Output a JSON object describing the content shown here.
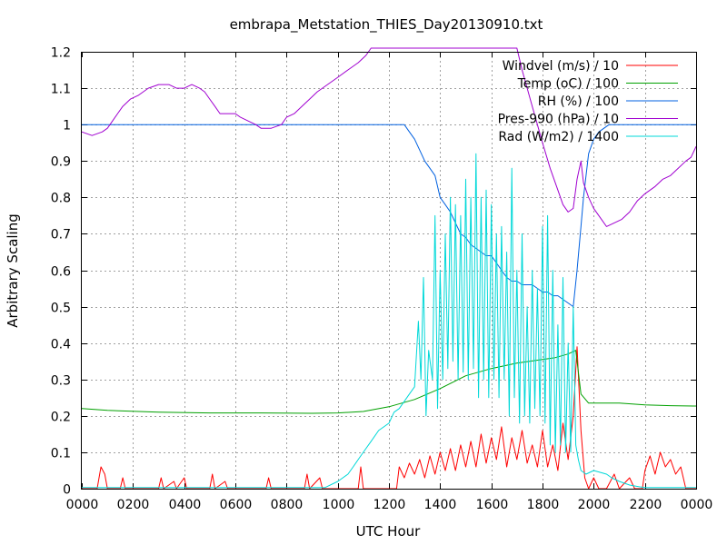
{
  "chart_data": {
    "type": "line",
    "title": "embrapa_Metstation_THIES_Day20130910.txt",
    "xlabel": "UTC Hour",
    "ylabel": "Arbitrary Scaling",
    "xlim": [
      0,
      2400
    ],
    "ylim": [
      0,
      1.2
    ],
    "grid": true,
    "legend_position": "top-right",
    "x_ticks": [
      "0000",
      "0200",
      "0400",
      "0600",
      "0800",
      "1000",
      "1200",
      "1400",
      "1600",
      "1800",
      "2000",
      "2200",
      "0000"
    ],
    "y_ticks": [
      "0",
      "0.1",
      "0.2",
      "0.3",
      "0.4",
      "0.5",
      "0.6",
      "0.7",
      "0.8",
      "0.9",
      "1",
      "1.1",
      "1.2"
    ],
    "series": [
      {
        "name": "Windvel (m/s) / 10",
        "color": "#ff0000",
        "points": [
          [
            0,
            0
          ],
          [
            60,
            0
          ],
          [
            75,
            0.06
          ],
          [
            90,
            0.04
          ],
          [
            100,
            0
          ],
          [
            150,
            0
          ],
          [
            160,
            0.03
          ],
          [
            170,
            0
          ],
          [
            300,
            0
          ],
          [
            310,
            0.03
          ],
          [
            320,
            0
          ],
          [
            360,
            0.02
          ],
          [
            370,
            0
          ],
          [
            400,
            0.03
          ],
          [
            410,
            0
          ],
          [
            500,
            0
          ],
          [
            510,
            0.04
          ],
          [
            520,
            0
          ],
          [
            560,
            0.02
          ],
          [
            570,
            0
          ],
          [
            720,
            0
          ],
          [
            730,
            0.03
          ],
          [
            740,
            0
          ],
          [
            870,
            0
          ],
          [
            880,
            0.04
          ],
          [
            890,
            0
          ],
          [
            930,
            0.03
          ],
          [
            940,
            0
          ],
          [
            1080,
            0
          ],
          [
            1090,
            0.06
          ],
          [
            1100,
            0
          ],
          [
            1230,
            0
          ],
          [
            1240,
            0.06
          ],
          [
            1260,
            0.03
          ],
          [
            1280,
            0.07
          ],
          [
            1300,
            0.04
          ],
          [
            1320,
            0.08
          ],
          [
            1340,
            0.03
          ],
          [
            1360,
            0.09
          ],
          [
            1380,
            0.04
          ],
          [
            1400,
            0.1
          ],
          [
            1420,
            0.05
          ],
          [
            1440,
            0.11
          ],
          [
            1460,
            0.05
          ],
          [
            1480,
            0.12
          ],
          [
            1500,
            0.06
          ],
          [
            1520,
            0.13
          ],
          [
            1540,
            0.06
          ],
          [
            1560,
            0.15
          ],
          [
            1580,
            0.07
          ],
          [
            1600,
            0.14
          ],
          [
            1620,
            0.08
          ],
          [
            1640,
            0.17
          ],
          [
            1660,
            0.06
          ],
          [
            1680,
            0.14
          ],
          [
            1700,
            0.08
          ],
          [
            1720,
            0.16
          ],
          [
            1740,
            0.07
          ],
          [
            1760,
            0.12
          ],
          [
            1780,
            0.06
          ],
          [
            1800,
            0.16
          ],
          [
            1820,
            0.06
          ],
          [
            1840,
            0.12
          ],
          [
            1860,
            0.05
          ],
          [
            1880,
            0.18
          ],
          [
            1900,
            0.08
          ],
          [
            1920,
            0.2
          ],
          [
            1935,
            0.39
          ],
          [
            1950,
            0.16
          ],
          [
            1965,
            0.03
          ],
          [
            1980,
            0
          ],
          [
            2000,
            0.03
          ],
          [
            2020,
            0
          ],
          [
            2050,
            0
          ],
          [
            2080,
            0.04
          ],
          [
            2100,
            0
          ],
          [
            2140,
            0.03
          ],
          [
            2160,
            0
          ],
          [
            2190,
            0
          ],
          [
            2200,
            0.05
          ],
          [
            2220,
            0.09
          ],
          [
            2240,
            0.04
          ],
          [
            2260,
            0.1
          ],
          [
            2280,
            0.06
          ],
          [
            2300,
            0.08
          ],
          [
            2320,
            0.04
          ],
          [
            2340,
            0.06
          ],
          [
            2360,
            0
          ],
          [
            2400,
            0
          ]
        ]
      },
      {
        "name": "Temp (oC) / 100",
        "color": "#00a000",
        "points": [
          [
            0,
            0.22
          ],
          [
            100,
            0.215
          ],
          [
            300,
            0.21
          ],
          [
            500,
            0.208
          ],
          [
            700,
            0.208
          ],
          [
            900,
            0.207
          ],
          [
            1000,
            0.208
          ],
          [
            1100,
            0.212
          ],
          [
            1200,
            0.225
          ],
          [
            1300,
            0.245
          ],
          [
            1400,
            0.275
          ],
          [
            1500,
            0.31
          ],
          [
            1600,
            0.33
          ],
          [
            1700,
            0.345
          ],
          [
            1800,
            0.355
          ],
          [
            1850,
            0.36
          ],
          [
            1900,
            0.37
          ],
          [
            1930,
            0.38
          ],
          [
            1950,
            0.26
          ],
          [
            1980,
            0.235
          ],
          [
            2000,
            0.235
          ],
          [
            2100,
            0.235
          ],
          [
            2200,
            0.23
          ],
          [
            2300,
            0.228
          ],
          [
            2400,
            0.227
          ]
        ]
      },
      {
        "name": "RH (%) / 100",
        "color": "#0060e0",
        "points": [
          [
            0,
            1.0
          ],
          [
            1260,
            1.0
          ],
          [
            1280,
            0.98
          ],
          [
            1300,
            0.96
          ],
          [
            1320,
            0.93
          ],
          [
            1340,
            0.9
          ],
          [
            1360,
            0.88
          ],
          [
            1380,
            0.86
          ],
          [
            1400,
            0.8
          ],
          [
            1420,
            0.78
          ],
          [
            1440,
            0.76
          ],
          [
            1460,
            0.73
          ],
          [
            1480,
            0.7
          ],
          [
            1500,
            0.69
          ],
          [
            1520,
            0.67
          ],
          [
            1540,
            0.66
          ],
          [
            1560,
            0.65
          ],
          [
            1580,
            0.64
          ],
          [
            1600,
            0.64
          ],
          [
            1620,
            0.62
          ],
          [
            1640,
            0.6
          ],
          [
            1660,
            0.58
          ],
          [
            1680,
            0.57
          ],
          [
            1700,
            0.57
          ],
          [
            1720,
            0.56
          ],
          [
            1740,
            0.56
          ],
          [
            1760,
            0.56
          ],
          [
            1780,
            0.55
          ],
          [
            1800,
            0.54
          ],
          [
            1820,
            0.54
          ],
          [
            1840,
            0.53
          ],
          [
            1860,
            0.53
          ],
          [
            1880,
            0.52
          ],
          [
            1900,
            0.51
          ],
          [
            1920,
            0.5
          ],
          [
            1935,
            0.6
          ],
          [
            1950,
            0.72
          ],
          [
            1960,
            0.8
          ],
          [
            1980,
            0.92
          ],
          [
            2000,
            0.96
          ],
          [
            2020,
            0.98
          ],
          [
            2040,
            0.99
          ],
          [
            2060,
            1.0
          ],
          [
            2400,
            1.0
          ]
        ]
      },
      {
        "name": "Pres-990 (hPa) / 10",
        "color": "#a000d0",
        "points": [
          [
            0,
            0.98
          ],
          [
            40,
            0.97
          ],
          [
            80,
            0.98
          ],
          [
            100,
            0.99
          ],
          [
            120,
            1.01
          ],
          [
            140,
            1.03
          ],
          [
            160,
            1.05
          ],
          [
            190,
            1.07
          ],
          [
            220,
            1.08
          ],
          [
            240,
            1.09
          ],
          [
            260,
            1.1
          ],
          [
            300,
            1.11
          ],
          [
            340,
            1.11
          ],
          [
            370,
            1.1
          ],
          [
            400,
            1.1
          ],
          [
            430,
            1.11
          ],
          [
            460,
            1.1
          ],
          [
            480,
            1.09
          ],
          [
            500,
            1.07
          ],
          [
            520,
            1.05
          ],
          [
            540,
            1.03
          ],
          [
            560,
            1.03
          ],
          [
            600,
            1.03
          ],
          [
            620,
            1.02
          ],
          [
            650,
            1.01
          ],
          [
            680,
            1.0
          ],
          [
            700,
            0.99
          ],
          [
            740,
            0.99
          ],
          [
            780,
            1.0
          ],
          [
            800,
            1.02
          ],
          [
            830,
            1.03
          ],
          [
            860,
            1.05
          ],
          [
            890,
            1.07
          ],
          [
            920,
            1.09
          ],
          [
            960,
            1.11
          ],
          [
            1000,
            1.13
          ],
          [
            1040,
            1.15
          ],
          [
            1080,
            1.17
          ],
          [
            1110,
            1.19
          ],
          [
            1130,
            1.21
          ],
          [
            1700,
            1.21
          ],
          [
            1720,
            1.15
          ],
          [
            1760,
            1.05
          ],
          [
            1800,
            0.95
          ],
          [
            1830,
            0.88
          ],
          [
            1860,
            0.82
          ],
          [
            1880,
            0.78
          ],
          [
            1900,
            0.76
          ],
          [
            1920,
            0.77
          ],
          [
            1935,
            0.85
          ],
          [
            1950,
            0.9
          ],
          [
            1960,
            0.84
          ],
          [
            1980,
            0.8
          ],
          [
            2000,
            0.77
          ],
          [
            2030,
            0.74
          ],
          [
            2050,
            0.72
          ],
          [
            2080,
            0.73
          ],
          [
            2110,
            0.74
          ],
          [
            2140,
            0.76
          ],
          [
            2170,
            0.79
          ],
          [
            2200,
            0.81
          ],
          [
            2240,
            0.83
          ],
          [
            2270,
            0.85
          ],
          [
            2300,
            0.86
          ],
          [
            2330,
            0.88
          ],
          [
            2360,
            0.9
          ],
          [
            2380,
            0.91
          ],
          [
            2400,
            0.94
          ]
        ]
      },
      {
        "name": "Rad (W/m2) / 1400",
        "color": "#00d8d8",
        "points": [
          [
            0,
            0.003
          ],
          [
            950,
            0.003
          ],
          [
            1000,
            0.02
          ],
          [
            1040,
            0.04
          ],
          [
            1060,
            0.06
          ],
          [
            1080,
            0.08
          ],
          [
            1100,
            0.1
          ],
          [
            1130,
            0.13
          ],
          [
            1160,
            0.16
          ],
          [
            1180,
            0.17
          ],
          [
            1200,
            0.18
          ],
          [
            1220,
            0.21
          ],
          [
            1240,
            0.22
          ],
          [
            1260,
            0.24
          ],
          [
            1280,
            0.26
          ],
          [
            1300,
            0.28
          ],
          [
            1315,
            0.46
          ],
          [
            1325,
            0.3
          ],
          [
            1335,
            0.58
          ],
          [
            1345,
            0.2
          ],
          [
            1355,
            0.38
          ],
          [
            1370,
            0.3
          ],
          [
            1380,
            0.75
          ],
          [
            1390,
            0.22
          ],
          [
            1400,
            0.6
          ],
          [
            1410,
            0.3
          ],
          [
            1420,
            0.7
          ],
          [
            1430,
            0.33
          ],
          [
            1440,
            0.8
          ],
          [
            1450,
            0.35
          ],
          [
            1460,
            0.78
          ],
          [
            1470,
            0.3
          ],
          [
            1480,
            0.75
          ],
          [
            1490,
            0.32
          ],
          [
            1500,
            0.85
          ],
          [
            1510,
            0.3
          ],
          [
            1520,
            0.8
          ],
          [
            1530,
            0.33
          ],
          [
            1540,
            0.92
          ],
          [
            1550,
            0.25
          ],
          [
            1560,
            0.8
          ],
          [
            1570,
            0.3
          ],
          [
            1580,
            0.82
          ],
          [
            1590,
            0.25
          ],
          [
            1600,
            0.78
          ],
          [
            1610,
            0.3
          ],
          [
            1620,
            0.7
          ],
          [
            1630,
            0.25
          ],
          [
            1640,
            0.72
          ],
          [
            1650,
            0.3
          ],
          [
            1660,
            0.65
          ],
          [
            1670,
            0.2
          ],
          [
            1680,
            0.88
          ],
          [
            1690,
            0.25
          ],
          [
            1700,
            0.6
          ],
          [
            1710,
            0.18
          ],
          [
            1720,
            0.7
          ],
          [
            1730,
            0.2
          ],
          [
            1740,
            0.5
          ],
          [
            1750,
            0.18
          ],
          [
            1760,
            0.6
          ],
          [
            1770,
            0.22
          ],
          [
            1780,
            0.55
          ],
          [
            1790,
            0.2
          ],
          [
            1800,
            0.72
          ],
          [
            1810,
            0.18
          ],
          [
            1820,
            0.75
          ],
          [
            1830,
            0.12
          ],
          [
            1840,
            0.6
          ],
          [
            1850,
            0.1
          ],
          [
            1860,
            0.45
          ],
          [
            1870,
            0.12
          ],
          [
            1880,
            0.58
          ],
          [
            1890,
            0.1
          ],
          [
            1900,
            0.4
          ],
          [
            1910,
            0.1
          ],
          [
            1920,
            0.5
          ],
          [
            1930,
            0.12
          ],
          [
            1940,
            0.08
          ],
          [
            1950,
            0.05
          ],
          [
            1970,
            0.04
          ],
          [
            2000,
            0.05
          ],
          [
            2050,
            0.04
          ],
          [
            2070,
            0.03
          ],
          [
            2100,
            0.02
          ],
          [
            2140,
            0.01
          ],
          [
            2180,
            0.005
          ],
          [
            2200,
            0.003
          ],
          [
            2400,
            0.003
          ]
        ]
      }
    ]
  }
}
